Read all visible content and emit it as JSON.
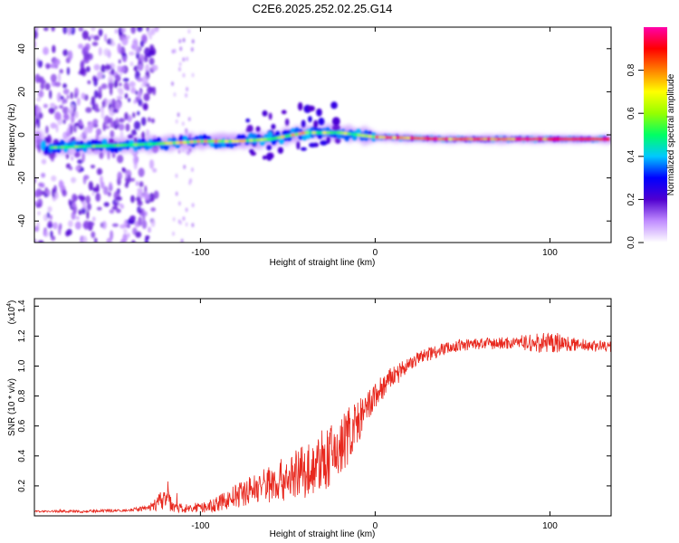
{
  "chart_data": [
    {
      "type": "heatmap",
      "title": "C2E6.2025.252.02.25.G14",
      "xlabel": "Height of straight line (km)",
      "ylabel": "Frequency (Hz)",
      "xlim": [
        -195,
        135
      ],
      "ylim": [
        -50,
        50
      ],
      "xticks": [
        -100,
        0,
        100
      ],
      "xtick_labels": [
        "-100",
        "0",
        "100"
      ],
      "yticks": [
        -40,
        -20,
        0,
        20,
        40
      ],
      "ytick_labels": [
        "-40",
        "-20",
        "0",
        "20",
        "40"
      ],
      "colorbar": {
        "label": "Normalized spectral amplitude",
        "range": [
          0,
          1
        ],
        "ticks": [
          0,
          0.2,
          0.4,
          0.6,
          0.8
        ],
        "tick_labels": [
          "0.0",
          "0.2",
          "0.4",
          "0.6",
          "0.8"
        ],
        "colors": [
          "#ffffff",
          "#c08cff",
          "#5000d0",
          "#0000ff",
          "#00c8ff",
          "#00ff64",
          "#96ff00",
          "#ffff00",
          "#ff8000",
          "#ff0000",
          "#ff00aa"
        ]
      },
      "ridge": [
        {
          "x": -190,
          "freq": -6
        },
        {
          "x": -150,
          "freq": -5
        },
        {
          "x": -120,
          "freq": -4
        },
        {
          "x": -100,
          "freq": -3
        },
        {
          "x": -80,
          "freq": -3
        },
        {
          "x": -60,
          "freq": -2
        },
        {
          "x": -40,
          "freq": 1
        },
        {
          "x": -20,
          "freq": 1
        },
        {
          "x": 0,
          "freq": -1
        },
        {
          "x": 40,
          "freq": -2
        },
        {
          "x": 80,
          "freq": -2
        },
        {
          "x": 100,
          "freq": -2
        },
        {
          "x": 135,
          "freq": -2
        }
      ]
    },
    {
      "type": "line",
      "title": "",
      "xlabel": "Height of straight line (km)",
      "ylabel": "SNR (10 * v/v)",
      "scale_label": "(x10",
      "scale_exp": "4",
      "scale_close": ")",
      "xlim": [
        -195,
        135
      ],
      "ylim": [
        0,
        1.45
      ],
      "xticks": [
        -100,
        0,
        100
      ],
      "xtick_labels": [
        "-100",
        "0",
        "100"
      ],
      "yticks": [
        0.2,
        0.4,
        0.6,
        0.8,
        1.0,
        1.2,
        1.4
      ],
      "ytick_labels": [
        "0.2",
        "0.4",
        "0.6",
        "0.8",
        "1.0",
        "1.2",
        "1.4"
      ],
      "series": [
        {
          "name": "SNR",
          "color": "#e8281e",
          "x": [
            -195,
            -180,
            -160,
            -140,
            -130,
            -125,
            -120,
            -115,
            -110,
            -100,
            -90,
            -80,
            -70,
            -60,
            -50,
            -40,
            -30,
            -20,
            -15,
            -10,
            -5,
            0,
            10,
            20,
            30,
            40,
            50,
            60,
            70,
            80,
            90,
            100,
            110,
            120,
            135
          ],
          "y": [
            0.03,
            0.03,
            0.03,
            0.04,
            0.05,
            0.08,
            0.12,
            0.07,
            0.05,
            0.05,
            0.08,
            0.13,
            0.18,
            0.22,
            0.25,
            0.3,
            0.35,
            0.45,
            0.55,
            0.62,
            0.7,
            0.8,
            0.93,
            1.02,
            1.08,
            1.12,
            1.14,
            1.15,
            1.15,
            1.16,
            1.15,
            1.16,
            1.15,
            1.14,
            1.13
          ],
          "noise": [
            0.005,
            0.008,
            0.01,
            0.01,
            0.02,
            0.05,
            0.08,
            0.05,
            0.03,
            0.03,
            0.05,
            0.08,
            0.1,
            0.13,
            0.15,
            0.18,
            0.2,
            0.22,
            0.2,
            0.15,
            0.12,
            0.1,
            0.07,
            0.05,
            0.05,
            0.04,
            0.04,
            0.04,
            0.04,
            0.05,
            0.06,
            0.08,
            0.05,
            0.04,
            0.04
          ]
        }
      ]
    }
  ]
}
